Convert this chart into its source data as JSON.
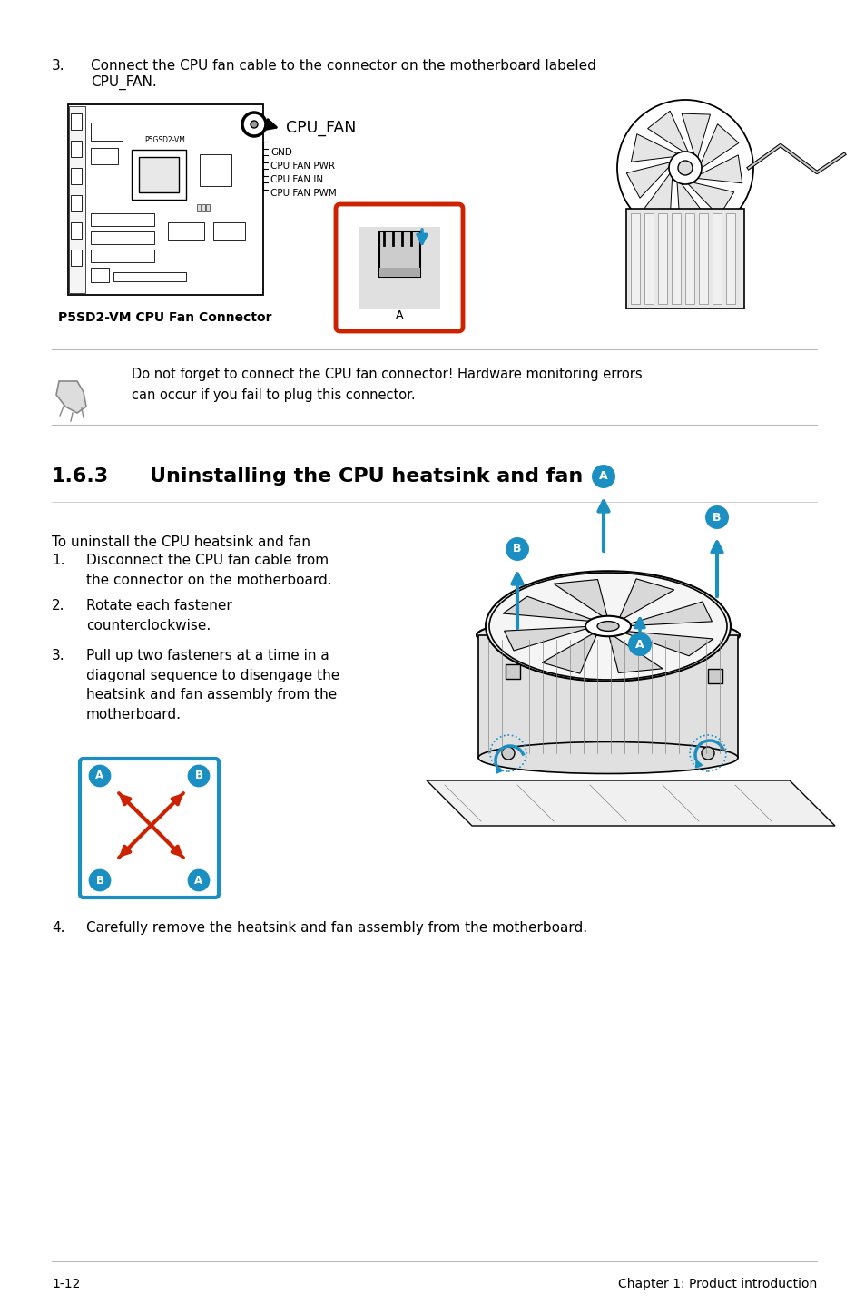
{
  "page_number": "1-12",
  "chapter": "Chapter 1: Product introduction",
  "bg_color": "#ffffff",
  "step3_text_line1": "Connect the CPU fan cable to the connector on the motherboard labeled",
  "step3_text_line2": "CPU_FAN.",
  "cpu_fan_label": "CPU_FAN",
  "cpu_fan_pins": [
    "GND",
    "CPU FAN PWR",
    "CPU FAN IN",
    "CPU FAN PWM"
  ],
  "motherboard_label": "P5SD2-VM CPU Fan Connector",
  "note_text": "Do not forget to connect the CPU fan connector! Hardware monitoring errors\ncan occur if you fail to plug this connector.",
  "section_number": "1.6.3",
  "section_title": "Uninstalling the CPU heatsink and fan",
  "intro_text": "To uninstall the CPU heatsink and fan",
  "steps": [
    "Disconnect the CPU fan cable from\nthe connector on the motherboard.",
    "Rotate each fastener\ncounterclockwise.",
    "Pull up two fasteners at a time in a\ndiagonal sequence to disengage the\nheatsink and fan assembly from the\nmotherboard."
  ],
  "step4_text": "Carefully remove the heatsink and fan assembly from the motherboard.",
  "accent_color": "#1b8fc1",
  "red_color": "#cc2200",
  "text_color": "#000000",
  "light_gray": "#bbbbbb",
  "mid_gray": "#888888",
  "dark_gray": "#444444"
}
